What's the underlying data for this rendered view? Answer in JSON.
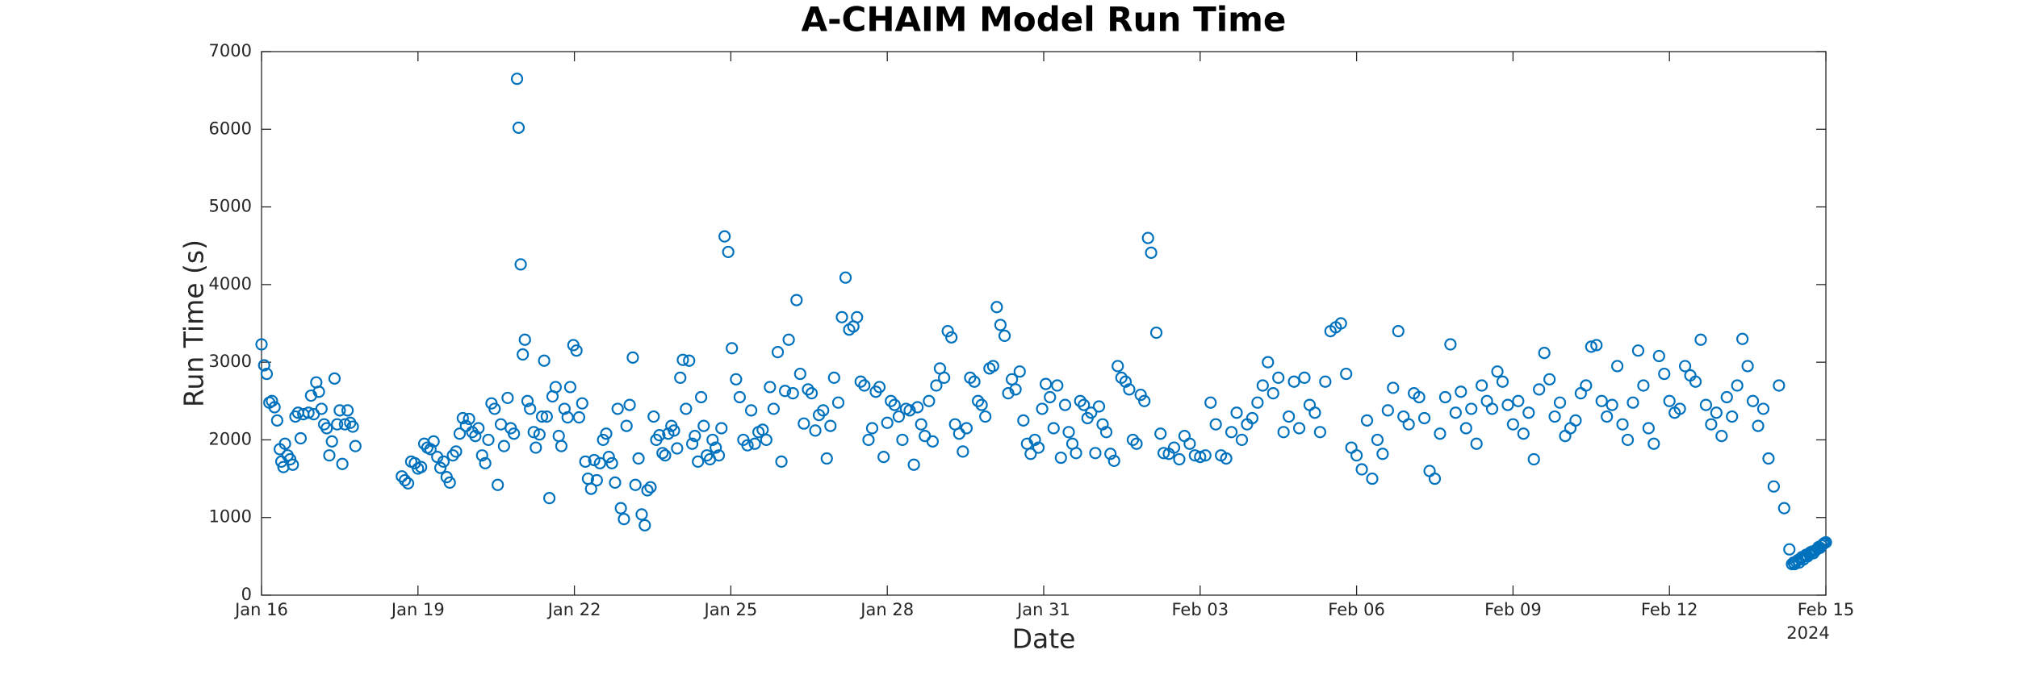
{
  "chart_data": {
    "type": "scatter",
    "title": "A-CHAIM Model Run Time",
    "x_label": "Date",
    "y_label": "Run Time (s)",
    "x_secondary_label": "2024",
    "color": "#0072bd",
    "marker": "open-circle",
    "grid": false,
    "box": true,
    "xlim": [
      16,
      46
    ],
    "xticks": [
      {
        "value": 16,
        "label": "Jan 16"
      },
      {
        "value": 19,
        "label": "Jan 19"
      },
      {
        "value": 22,
        "label": "Jan 22"
      },
      {
        "value": 25,
        "label": "Jan 25"
      },
      {
        "value": 28,
        "label": "Jan 28"
      },
      {
        "value": 31,
        "label": "Jan 31"
      },
      {
        "value": 34,
        "label": "Feb 03"
      },
      {
        "value": 37,
        "label": "Feb 06"
      },
      {
        "value": 40,
        "label": "Feb 09"
      },
      {
        "value": 43,
        "label": "Feb 12"
      },
      {
        "value": 46,
        "label": "Feb 15"
      }
    ],
    "ylim": [
      0,
      7000
    ],
    "yticks": [
      0,
      1000,
      2000,
      3000,
      4000,
      5000,
      6000,
      7000
    ],
    "x": [
      16.0,
      16.05,
      16.1,
      16.15,
      16.2,
      16.25,
      16.3,
      16.35,
      16.38,
      16.42,
      16.45,
      16.5,
      16.55,
      16.6,
      16.65,
      16.7,
      16.75,
      16.8,
      16.9,
      16.95,
      17.0,
      17.05,
      17.1,
      17.15,
      17.2,
      17.25,
      17.3,
      17.35,
      17.4,
      17.45,
      17.5,
      17.55,
      17.6,
      17.65,
      17.7,
      17.75,
      17.8,
      18.69,
      18.75,
      18.81,
      18.87,
      18.94,
      19.0,
      19.06,
      19.12,
      19.18,
      19.24,
      19.3,
      19.37,
      19.43,
      19.49,
      19.55,
      19.61,
      19.67,
      19.73,
      19.8,
      19.86,
      19.92,
      19.98,
      20.04,
      20.1,
      20.16,
      20.23,
      20.29,
      20.35,
      20.41,
      20.47,
      20.53,
      20.59,
      20.65,
      20.72,
      20.78,
      20.84,
      20.9,
      20.93,
      20.97,
      21.01,
      21.05,
      21.1,
      21.15,
      21.22,
      21.26,
      21.33,
      21.38,
      21.42,
      21.47,
      21.52,
      21.58,
      21.64,
      21.7,
      21.75,
      21.81,
      21.87,
      21.92,
      21.98,
      22.04,
      22.09,
      22.15,
      22.21,
      22.26,
      22.32,
      22.38,
      22.43,
      22.49,
      22.55,
      22.61,
      22.66,
      22.72,
      22.78,
      22.83,
      22.89,
      22.95,
      23.0,
      23.06,
      23.12,
      23.17,
      23.23,
      23.29,
      23.35,
      23.4,
      23.46,
      23.52,
      23.57,
      23.63,
      23.69,
      23.74,
      23.8,
      23.86,
      23.91,
      23.97,
      24.03,
      24.08,
      24.14,
      24.2,
      24.26,
      24.31,
      24.37,
      24.43,
      24.48,
      24.54,
      24.6,
      24.65,
      24.71,
      24.77,
      24.82,
      24.88,
      24.95,
      25.02,
      25.1,
      25.17,
      25.24,
      25.32,
      25.39,
      25.46,
      25.53,
      25.61,
      25.68,
      25.75,
      25.82,
      25.9,
      25.97,
      26.04,
      26.11,
      26.19,
      26.26,
      26.33,
      26.4,
      26.48,
      26.55,
      26.62,
      26.69,
      26.77,
      26.84,
      26.91,
      26.98,
      27.06,
      27.13,
      27.2,
      27.27,
      27.35,
      27.42,
      27.49,
      27.56,
      27.64,
      27.71,
      27.78,
      27.85,
      27.93,
      28.0,
      28.07,
      28.14,
      28.22,
      28.29,
      28.36,
      28.43,
      28.51,
      28.58,
      28.65,
      28.72,
      28.8,
      28.87,
      28.94,
      29.01,
      29.09,
      29.16,
      29.23,
      29.3,
      29.38,
      29.45,
      29.52,
      29.59,
      29.67,
      29.74,
      29.81,
      29.88,
      29.96,
      30.03,
      30.1,
      30.17,
      30.25,
      30.32,
      30.39,
      30.46,
      30.54,
      30.61,
      30.68,
      30.75,
      30.83,
      30.9,
      30.97,
      31.04,
      31.12,
      31.19,
      31.26,
      31.33,
      31.41,
      31.48,
      31.55,
      31.62,
      31.7,
      31.77,
      31.84,
      31.91,
      31.99,
      32.06,
      32.13,
      32.2,
      32.28,
      32.35,
      32.42,
      32.49,
      32.57,
      32.64,
      32.71,
      32.78,
      32.86,
      32.93,
      33.0,
      33.06,
      33.16,
      33.24,
      33.3,
      33.4,
      33.5,
      33.6,
      33.7,
      33.8,
      33.9,
      34.0,
      34.1,
      34.2,
      34.3,
      34.4,
      34.5,
      34.6,
      34.7,
      34.8,
      34.9,
      35.0,
      35.1,
      35.2,
      35.3,
      35.4,
      35.5,
      35.6,
      35.7,
      35.8,
      35.9,
      36.0,
      36.1,
      36.2,
      36.3,
      36.4,
      36.5,
      36.6,
      36.7,
      36.8,
      36.9,
      37.0,
      37.1,
      37.2,
      37.3,
      37.4,
      37.5,
      37.6,
      37.7,
      37.8,
      37.9,
      38.0,
      38.1,
      38.2,
      38.3,
      38.4,
      38.5,
      38.6,
      38.7,
      38.8,
      38.9,
      39.0,
      39.1,
      39.2,
      39.3,
      39.4,
      39.5,
      39.6,
      39.7,
      39.8,
      39.9,
      40.0,
      40.1,
      40.2,
      40.3,
      40.4,
      40.5,
      40.6,
      40.7,
      40.8,
      40.9,
      41.0,
      41.1,
      41.2,
      41.3,
      41.4,
      41.5,
      41.6,
      41.7,
      41.8,
      41.9,
      42.0,
      42.1,
      42.2,
      42.3,
      42.4,
      42.5,
      42.6,
      42.7,
      42.8,
      42.9,
      43.0,
      43.1,
      43.2,
      43.3,
      43.4,
      43.5,
      43.6,
      43.7,
      43.8,
      43.9,
      44.0,
      44.1,
      44.2,
      44.3,
      44.4,
      44.5,
      44.6,
      44.7,
      44.8,
      44.9,
      45.0,
      45.1,
      45.2,
      45.3,
      45.35,
      45.38,
      45.4,
      45.43,
      45.46,
      45.49,
      45.51,
      45.54,
      45.57,
      45.59,
      45.62,
      45.65,
      45.68,
      45.7,
      45.73,
      45.76,
      45.78,
      45.81,
      45.84,
      45.86,
      45.89,
      45.92,
      45.95,
      45.97,
      46.0
    ],
    "values": [
      3230,
      2960,
      2850,
      2480,
      2500,
      2420,
      2250,
      1880,
      1720,
      1650,
      1950,
      1800,
      1750,
      1680,
      2300,
      2350,
      2020,
      2330,
      2350,
      2570,
      2330,
      2740,
      2620,
      2400,
      2200,
      2150,
      1800,
      1980,
      2790,
      2200,
      2380,
      1690,
      2200,
      2380,
      2220,
      2170,
      1920,
      1530,
      1480,
      1440,
      1720,
      1700,
      1630,
      1650,
      1950,
      1900,
      1880,
      1980,
      1780,
      1640,
      1720,
      1520,
      1450,
      1800,
      1850,
      2080,
      2280,
      2180,
      2270,
      2100,
      2050,
      2150,
      1800,
      1700,
      2000,
      2470,
      2400,
      1420,
      2200,
      1920,
      2540,
      2150,
      2080,
      6650,
      6020,
      4260,
      3100,
      3290,
      2500,
      2400,
      2100,
      1900,
      2070,
      2300,
      3020,
      2300,
      1250,
      2560,
      2680,
      2050,
      1920,
      2400,
      2290,
      2680,
      3220,
      3150,
      2290,
      2470,
      1720,
      1500,
      1370,
      1740,
      1480,
      1700,
      2000,
      2080,
      1780,
      1700,
      1450,
      2400,
      1120,
      980,
      2180,
      2450,
      3060,
      1420,
      1760,
      1040,
      900,
      1350,
      1390,
      2300,
      2000,
      2060,
      1830,
      1800,
      2080,
      2180,
      2120,
      1890,
      2800,
      3030,
      2400,
      3020,
      1950,
      2050,
      1720,
      2550,
      2180,
      1800,
      1750,
      2000,
      1900,
      1800,
      2150,
      4620,
      4420,
      3180,
      2780,
      2550,
      2000,
      1930,
      2380,
      1950,
      2100,
      2130,
      2000,
      2680,
      2400,
      3130,
      1720,
      2630,
      3290,
      2600,
      3800,
      2850,
      2210,
      2650,
      2600,
      2120,
      2320,
      2380,
      1760,
      2180,
      2800,
      2480,
      3580,
      4090,
      3420,
      3460,
      3580,
      2750,
      2700,
      2000,
      2150,
      2620,
      2680,
      1780,
      2220,
      2500,
      2450,
      2300,
      2000,
      2400,
      2380,
      1680,
      2420,
      2200,
      2050,
      2500,
      1980,
      2700,
      2920,
      2800,
      3400,
      3320,
      2200,
      2080,
      1850,
      2150,
      2800,
      2750,
      2500,
      2450,
      2300,
      2920,
      2950,
      3710,
      3480,
      3340,
      2600,
      2780,
      2650,
      2880,
      2250,
      1950,
      1820,
      2000,
      1900,
      2400,
      2720,
      2550,
      2150,
      2700,
      1770,
      2450,
      2100,
      1950,
      1830,
      2500,
      2450,
      2280,
      2350,
      1830,
      2430,
      2200,
      2100,
      1820,
      1730,
      2950,
      2800,
      2750,
      2650,
      2000,
      1950,
      2580,
      2500,
      4600,
      4410,
      3380,
      2080,
      1830,
      1820,
      1900,
      1750,
      2050,
      1950,
      1800,
      1780,
      1800,
      2480,
      2200,
      1800,
      1760,
      2100,
      2350,
      2000,
      2200,
      2280,
      2480,
      2700,
      3000,
      2600,
      2800,
      2100,
      2300,
      2750,
      2150,
      2800,
      2450,
      2350,
      2100,
      2750,
      3400,
      3450,
      3500,
      2850,
      1900,
      1800,
      1620,
      2250,
      1500,
      2000,
      1820,
      2380,
      2670,
      3400,
      2300,
      2200,
      2600,
      2550,
      2280,
      1600,
      1500,
      2080,
      2550,
      3230,
      2350,
      2620,
      2150,
      2400,
      1950,
      2700,
      2500,
      2400,
      2880,
      2750,
      2450,
      2200,
      2500,
      2080,
      2350,
      1750,
      2650,
      3120,
      2780,
      2300,
      2480,
      2050,
      2150,
      2250,
      2600,
      2700,
      3200,
      3220,
      2500,
      2300,
      2450,
      2950,
      2200,
      2000,
      2480,
      3150,
      2700,
      2150,
      1950,
      3080,
      2850,
      2500,
      2350,
      2400,
      2950,
      2830,
      2750,
      3290,
      2450,
      2200,
      2350,
      2050,
      2550,
      2300,
      2700,
      3300,
      2950,
      2500,
      2180,
      2400,
      1760,
      1400,
      2700,
      1120,
      590,
      400,
      420,
      400,
      430,
      450,
      420,
      470,
      490,
      460,
      500,
      520,
      500,
      530,
      550,
      560,
      540,
      570,
      580,
      600,
      620,
      610,
      640,
      660,
      670,
      680
    ]
  }
}
